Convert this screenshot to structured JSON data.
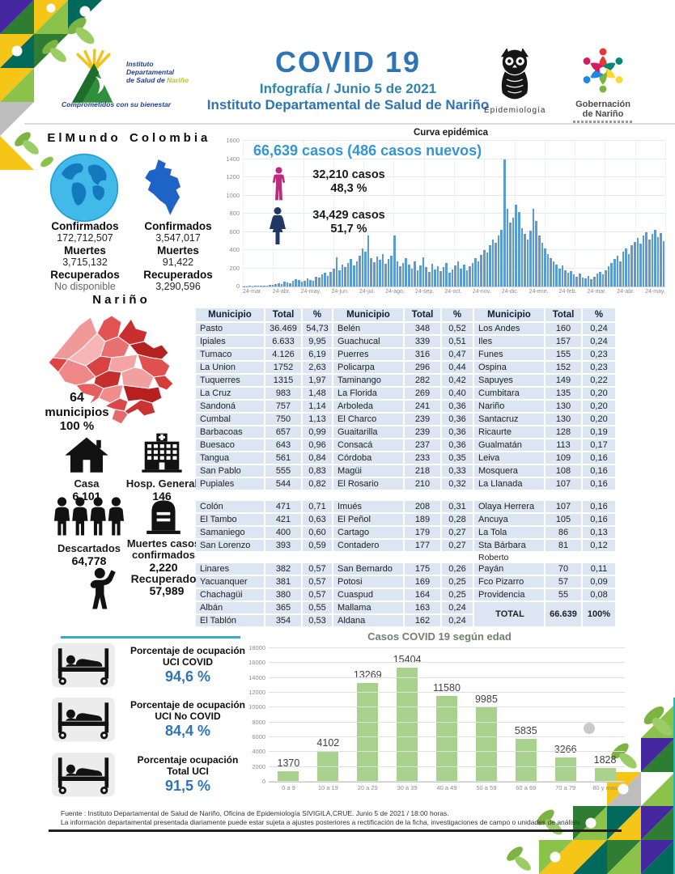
{
  "header": {
    "title": "COVID 19",
    "subtitle1": "Infografía / Junio 5 de 2021",
    "subtitle2": "Instituto Departamental de Salud de Nariño",
    "idsn": {
      "l1": "Instituto",
      "l2": "Departamental",
      "l3": "de Salud de",
      "l3b": "Nariño",
      "tagline": "Comprometidos con su bienestar"
    },
    "epi_label": "Epidemiología",
    "gob_l1": "Gobernación",
    "gob_l2": "de Nariño"
  },
  "world": {
    "heading": "ElMundo",
    "conf_label": "Confirmados",
    "conf": "172,712,507",
    "deaths_label": "Muertes",
    "deaths": "3,715,132",
    "rec_label": "Recuperados",
    "rec": "No disponible"
  },
  "colombia": {
    "heading": "Colombia",
    "conf_label": "Confirmados",
    "conf": "3,547,017",
    "deaths_label": "Muertes",
    "deaths": "91,422",
    "rec_label": "Recuperados",
    "rec": "3,290,596"
  },
  "narino": {
    "heading": "Nariño",
    "mun_value": "64",
    "mun_label": "municipios",
    "mun_pct": "100 %"
  },
  "indicators": {
    "casa": {
      "label": "Casa",
      "value": "6,101"
    },
    "hospital": {
      "label": "Hosp. General",
      "value": "146"
    },
    "descartados": {
      "label": "Descartados",
      "value": "64,778"
    },
    "muertes": {
      "label1": "Muertes casos",
      "label2": "confirmados",
      "value": "2,220"
    },
    "recuperados": {
      "label": "Recuperados",
      "value": "57,989"
    }
  },
  "gender": {
    "male_cases": "32,210  casos",
    "male_pct": "48,3 %",
    "female_cases": "34,429  casos",
    "female_pct": "51,7 %"
  },
  "uci": {
    "rows": [
      {
        "l1": "Porcentaje de ocupación",
        "l2": "UCI COVID",
        "value": "94,6 %"
      },
      {
        "l1": "Porcentaje de ocupación",
        "l2": "UCI No COVID",
        "value": "84,4 %"
      },
      {
        "l1": "Porcentaje ocupación",
        "l2": "Total UCI",
        "value": "91,5 %"
      }
    ]
  },
  "table": {
    "headers": [
      "Municipio",
      "Total",
      "%"
    ],
    "rows": [
      {
        "cells": [
          "Pasto",
          "36.469",
          "54,73",
          "Belén",
          "348",
          "0,52",
          "Los Andes",
          "160",
          "0,24"
        ]
      },
      {
        "cells": [
          "Ipiales",
          "6.633",
          "9,95",
          "Guachucal",
          "339",
          "0,51",
          "Iles",
          "157",
          "0,24"
        ]
      },
      {
        "cells": [
          "Tumaco",
          "4.126",
          "6,19",
          "Puerres",
          "316",
          "0,47",
          "Funes",
          "155",
          "0,23"
        ]
      },
      {
        "cells": [
          "La Union",
          "1752",
          "2,63",
          "Policarpa",
          "296",
          "0,44",
          "Ospina",
          "152",
          "0,23"
        ]
      },
      {
        "cells": [
          "Tuquerres",
          "1315",
          "1,97",
          "Taminango",
          "282",
          "0,42",
          "Sapuyes",
          "149",
          "0,22"
        ]
      },
      {
        "cells": [
          "La Cruz",
          "983",
          "1,48",
          "La Florida",
          "269",
          "0,40",
          "Cumbitara",
          "135",
          "0,20"
        ]
      },
      {
        "cells": [
          "Sandoná",
          "757",
          "1,14",
          "Arboleda",
          "241",
          "0,36",
          "Nariño",
          "130",
          "0,20"
        ]
      },
      {
        "cells": [
          "Cumbal",
          "750",
          "1,13",
          "El Charco",
          "239",
          "0,36",
          "Santacruz",
          "130",
          "0,20"
        ]
      },
      {
        "cells": [
          "Barbacoas",
          "657",
          "0,99",
          "Guaitarilla",
          "239",
          "0,36",
          "Ricaurte",
          "128",
          "0,19"
        ]
      },
      {
        "cells": [
          "Buesaco",
          "643",
          "0,96",
          "Consacá",
          "237",
          "0,36",
          "Gualmatán",
          "113",
          "0,17"
        ]
      },
      {
        "cells": [
          "Tangua",
          "561",
          "0,84",
          "Córdoba",
          "233",
          "0,35",
          "Leiva",
          "109",
          "0,16"
        ]
      },
      {
        "cells": [
          "San Pablo",
          "555",
          "0,83",
          "Magüi",
          "218",
          "0,33",
          "Mosquera",
          "108",
          "0,16"
        ]
      },
      {
        "cells": [
          "Pupiales",
          "544",
          "0,82",
          "El Rosario",
          "210",
          "0,32",
          "La Llanada",
          "107",
          "0,16"
        ]
      },
      {
        "gap": true,
        "cells": [
          "",
          "",
          "",
          "",
          "",
          "",
          "",
          "",
          ""
        ]
      },
      {
        "cells": [
          "Colón",
          "471",
          "0,71",
          "Imués",
          "208",
          "0,31",
          "Olaya Herrera",
          "107",
          "0,16"
        ]
      },
      {
        "cells": [
          "El Tambo",
          "421",
          "0,63",
          "El Peñol",
          "189",
          "0,28",
          "Ancuya",
          "105",
          "0,16"
        ]
      },
      {
        "cells": [
          "Samaniego",
          "400",
          "0,60",
          "Cartago",
          "179",
          "0,27",
          "La Tola",
          "86",
          "0,13"
        ]
      },
      {
        "cells": [
          "San Lorenzo",
          "393",
          "0,59",
          "Contadero",
          "177",
          "0,27",
          "Sta Bárbara",
          "81",
          "0,12"
        ]
      },
      {
        "gap": true,
        "cells": [
          "",
          "",
          "",
          "",
          "",
          "",
          "Roberto",
          "",
          ""
        ]
      },
      {
        "cells": [
          "Linares",
          "382",
          "0,57",
          "San Bernardo",
          "175",
          "0,26",
          "Payán",
          "70",
          "0,11"
        ]
      },
      {
        "cells": [
          "Yacuanquer",
          "381",
          "0,57",
          "Potosi",
          "169",
          "0,25",
          "Fco Pizarro",
          "57",
          "0,09"
        ]
      },
      {
        "cells": [
          "Chachagüi",
          "380",
          "0,57",
          "Cuaspud",
          "164",
          "0,25",
          "Providencia",
          "55",
          "0,08"
        ]
      },
      {
        "cells": [
          "Albán",
          "365",
          "0,55",
          "Mallama",
          "163",
          "0,24",
          {
            "t": "TOTAL",
            "b": 1,
            "rs": 2
          },
          {
            "t": "66.639",
            "b": 1,
            "rs": 2
          },
          {
            "t": "100%",
            "b": 1,
            "rs": 2
          }
        ]
      },
      {
        "cells": [
          "El Tablón",
          "354",
          "0,53",
          "Aldana",
          "162",
          "0,24"
        ]
      }
    ]
  },
  "footer": {
    "line1": "Fuente : Instituto Departamental de Salud de Nariño, Oficina de Epidemiología SIVIGILA,CRUE.  Junio 5 de 2021 / 18:00  horas.",
    "line2": "La información departamental presentada diariamente puede estar sujeta a ajustes posteriores a  rectificación de la ficha, investigaciones de campo o unidades de análisis."
  },
  "chart_data": [
    {
      "type": "bar",
      "title": "Curva epidémica",
      "annotation": "66,639  casos (486 casos nuevos)",
      "ylim": [
        0,
        1600
      ],
      "ytick_step": 200,
      "grid": true,
      "bar_color": "#5b9bd5",
      "x_tick_labels": [
        "24-mar.",
        "24-abr.",
        "24-may.",
        "24-jun.",
        "24-jul.",
        "24-ago.",
        "24-sep.",
        "24-oct.",
        "24-nov.",
        "24-dic.",
        "24-ene.",
        "24-feb.",
        "24-mar.",
        "24-abr.",
        "24-may."
      ],
      "values": [
        3,
        2,
        5,
        4,
        8,
        6,
        10,
        12,
        9,
        15,
        18,
        25,
        40,
        30,
        55,
        45,
        35,
        60,
        80,
        70,
        50,
        65,
        90,
        75,
        60,
        110,
        95,
        130,
        150,
        120,
        160,
        200,
        320,
        180,
        240,
        210,
        260,
        300,
        230,
        280,
        340,
        420,
        380,
        560,
        310,
        270,
        330,
        290,
        360,
        250,
        300,
        340,
        560,
        280,
        220,
        260,
        310,
        240,
        200,
        280,
        180,
        230,
        320,
        210,
        160,
        250,
        190,
        220,
        170,
        210,
        260,
        150,
        190,
        230,
        280,
        200,
        240,
        180,
        220,
        260,
        310,
        280,
        350,
        400,
        370,
        450,
        520,
        480,
        560,
        620,
        1400,
        850,
        700,
        760,
        900,
        820,
        640,
        580,
        520,
        610,
        850,
        720,
        560,
        480,
        420,
        360,
        310,
        280,
        240,
        200,
        230,
        180,
        150,
        170,
        130,
        110,
        140,
        100,
        90,
        120,
        80,
        110,
        140,
        160,
        130,
        180,
        220,
        260,
        300,
        340,
        280,
        380,
        420,
        360,
        450,
        490,
        530,
        470,
        560,
        600,
        520,
        580,
        620,
        540,
        590,
        500
      ]
    },
    {
      "type": "bar",
      "title": "Casos COVID 19  según edad",
      "categories": [
        "0 a 9",
        "10 a 19",
        "20 a 29",
        "30 a 39",
        "40 a 49",
        "50 a 59",
        "60 a 69",
        "70 a 79",
        "80 y mas"
      ],
      "values": [
        1370,
        4102,
        13269,
        15404,
        11580,
        9985,
        5835,
        3266,
        1828
      ],
      "ylim": [
        0,
        18000
      ],
      "ytick_step": 2000,
      "grid": true,
      "bar_color": "#a9d18e"
    }
  ]
}
